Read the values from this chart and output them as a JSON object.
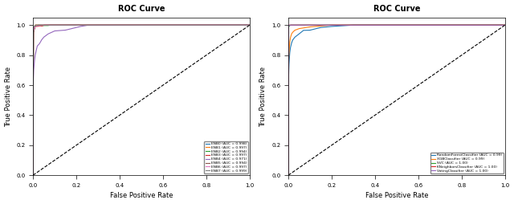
{
  "title": "ROC Curve",
  "xlabel": "False Positive Rate",
  "ylabel": "True Positive Rate",
  "left_legend": [
    {
      "label": "ENB0 (AUC = 0.998)",
      "color": "#1f77b4"
    },
    {
      "label": "ENB1 (AUC = 0.997)",
      "color": "#ff7f0e"
    },
    {
      "label": "ENB2 (AUC = 0.994)",
      "color": "#2ca02c"
    },
    {
      "label": "ENB3 (AUC = 0.997)",
      "color": "#d62728"
    },
    {
      "label": "ENB4 (AUC = 0.971)",
      "color": "#9467bd"
    },
    {
      "label": "ENB5 (AUC = 0.994)",
      "color": "#8c564b"
    },
    {
      "label": "ENB6 (AUC = 0.997)",
      "color": "#e377c2"
    },
    {
      "label": "ENB7 (AUC = 0.999)",
      "color": "#7f7f7f"
    }
  ],
  "right_legend": [
    {
      "label": "RandomForestClassifier (AUC = 0.99)",
      "color": "#1f77b4"
    },
    {
      "label": "XGBClassifier (AUC = 0.99)",
      "color": "#ff7f0e"
    },
    {
      "label": "SVC (AUC = 1.00)",
      "color": "#2ca02c"
    },
    {
      "label": "KNeighborsClassifier (AUC = 1.00)",
      "color": "#d62728"
    },
    {
      "label": "VotingClassifier (AUC = 1.00)",
      "color": "#9467bd"
    }
  ],
  "figsize": [
    6.4,
    2.54
  ],
  "dpi": 100
}
